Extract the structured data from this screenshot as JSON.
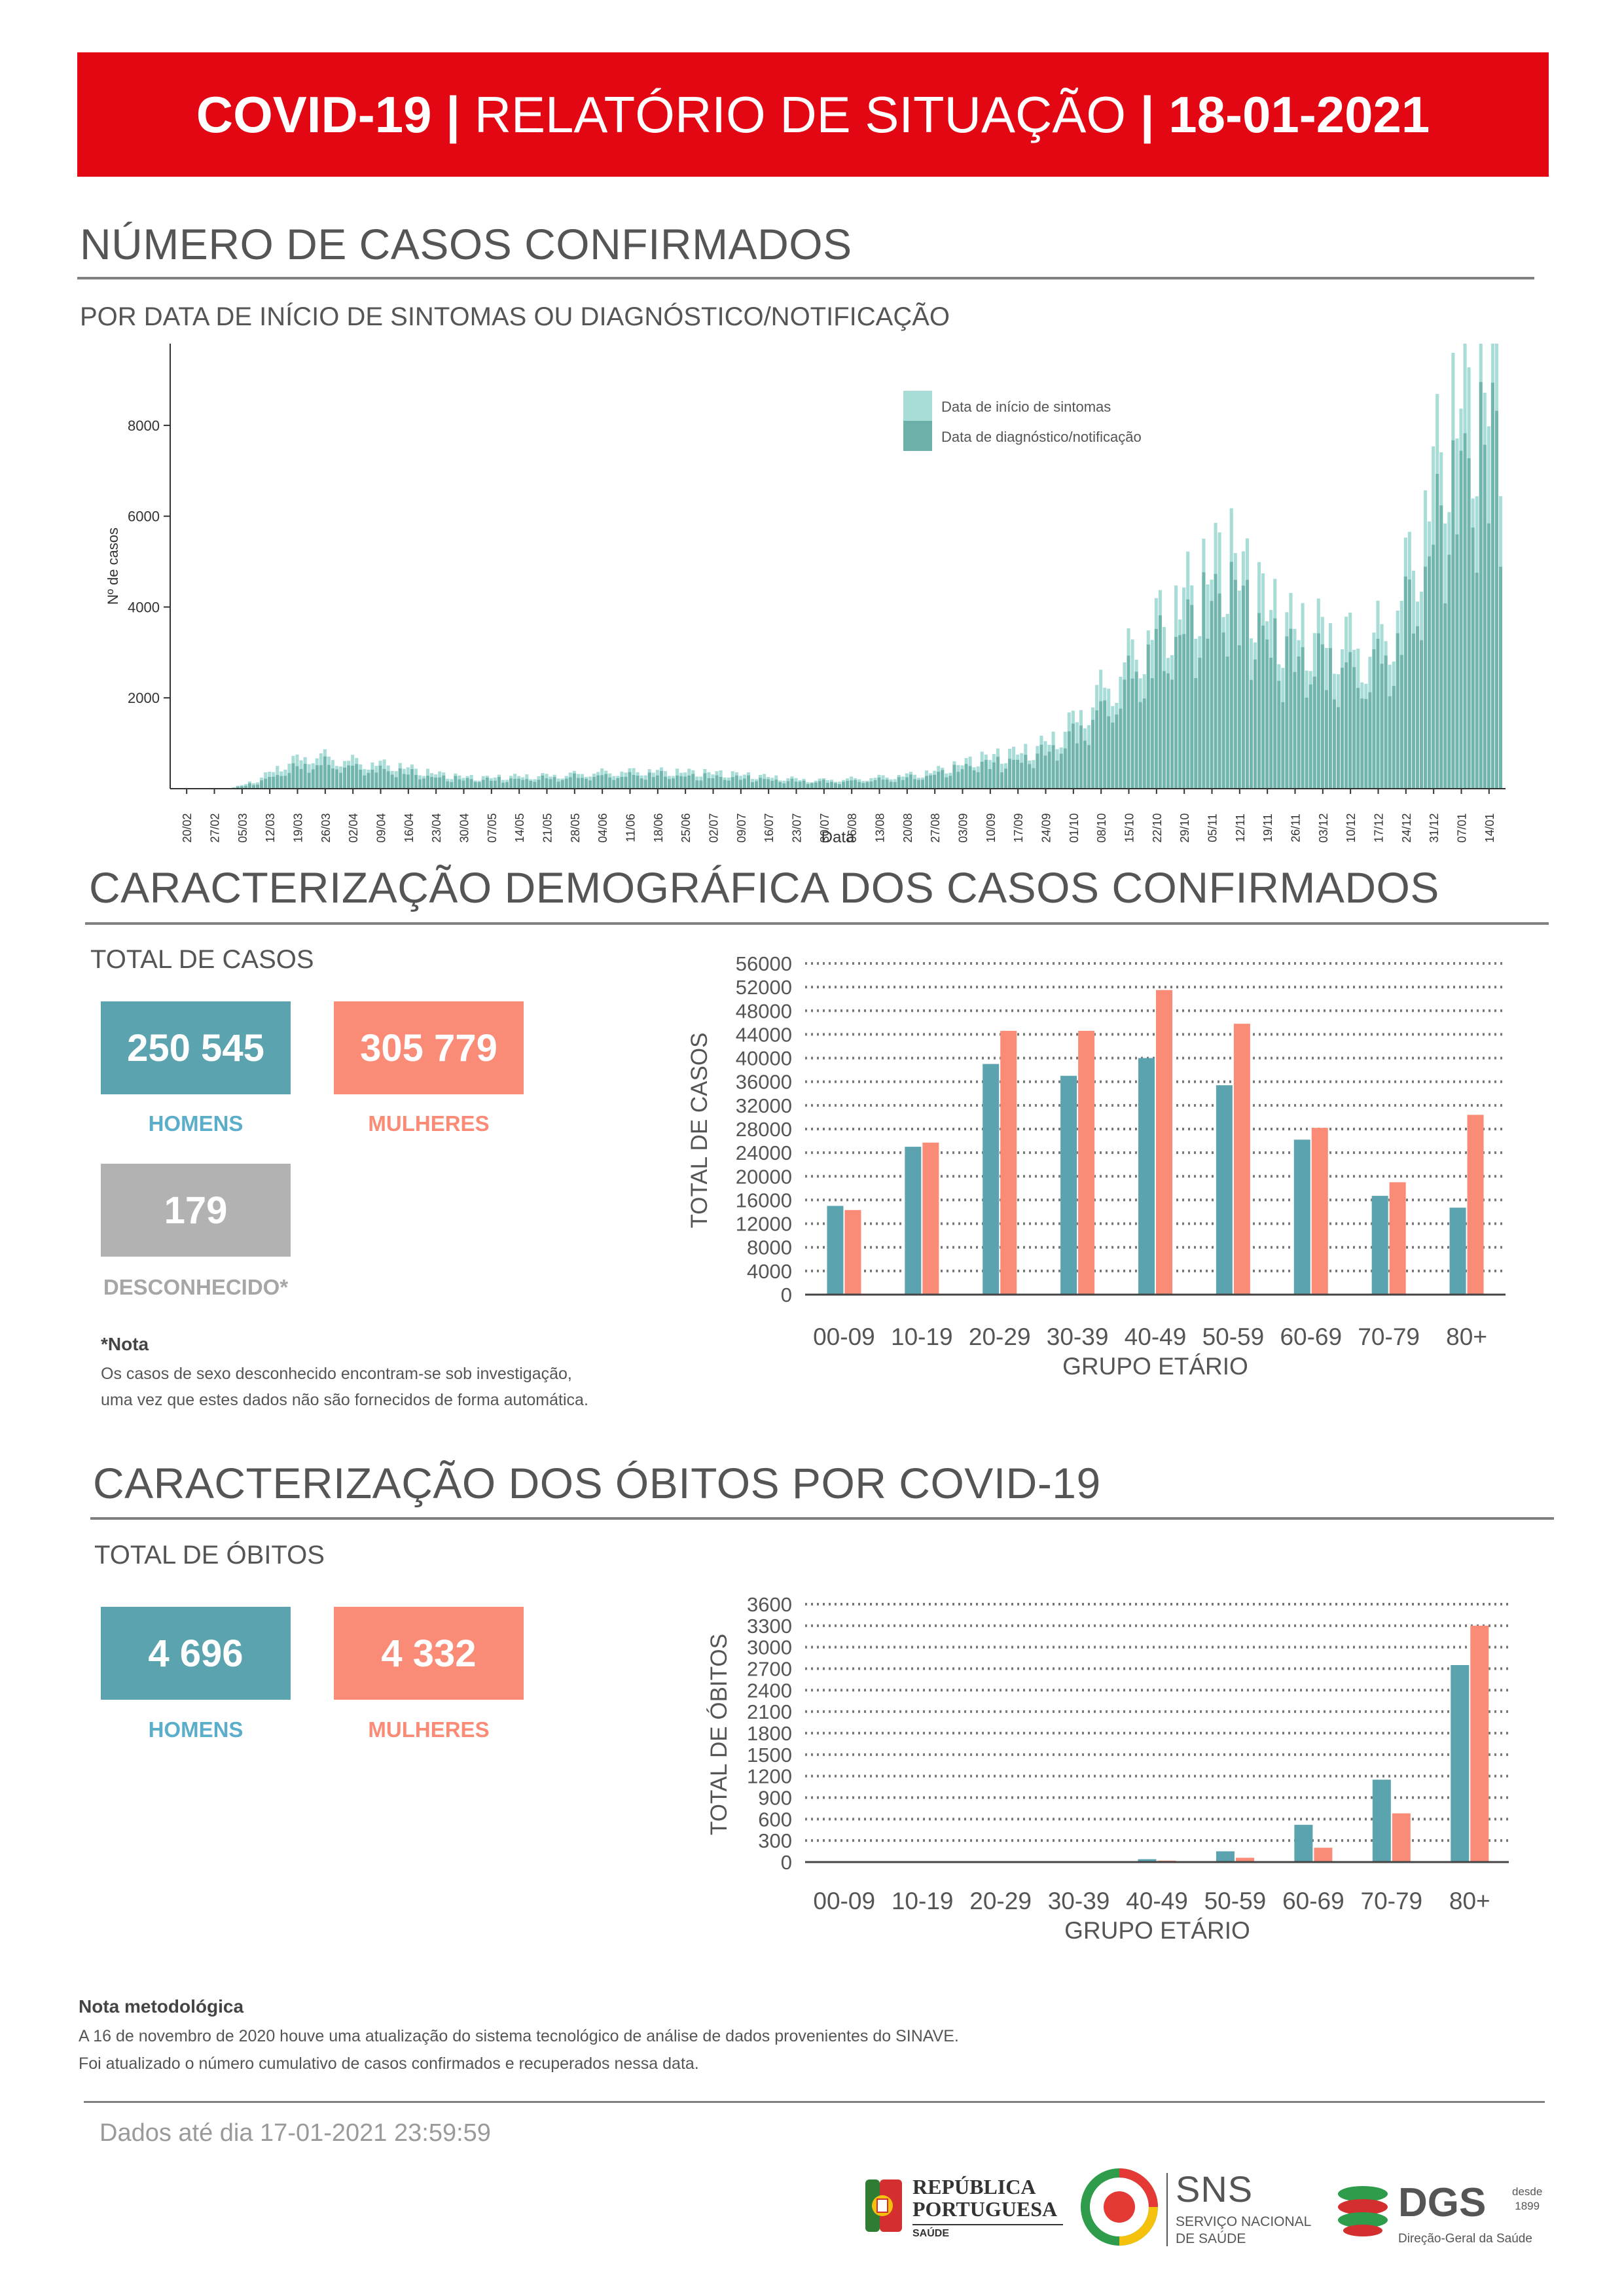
{
  "header": {
    "part1": "COVID-19",
    "sep1": "|",
    "part2": "RELATÓRIO DE SITUAÇÃO",
    "sep2": "|",
    "date": "18-01-2021"
  },
  "colors": {
    "red": "#e30613",
    "teal": "#5ba3ae",
    "salmon": "#fa8b77",
    "grey": "#b2b2b2",
    "light_teal": "#a7dcd7",
    "dark_teal": "#6cb0a9",
    "label_teal": "#5aaec9"
  },
  "section1": {
    "title": "NÚMERO DE CASOS CONFIRMADOS",
    "subtitle": "POR DATA DE INÍCIO DE SINTOMAS OU DIAGNÓSTICO/NOTIFICAÇÃO"
  },
  "section2": {
    "title": "CARACTERIZAÇÃO DEMOGRÁFICA DOS CASOS CONFIRMADOS",
    "total_label": "TOTAL DE CASOS",
    "men_value": "250 545",
    "women_value": "305 779",
    "unknown_value": "179",
    "men_label": "HOMENS",
    "women_label": "MULHERES",
    "unknown_label": "DESCONHECIDO*",
    "note_title": "*Nota",
    "note_line1": "Os casos de sexo desconhecido encontram-se sob investigação,",
    "note_line2": "uma vez que estes dados não são fornecidos de forma automática."
  },
  "section3": {
    "title": "CARACTERIZAÇÃO DOS ÓBITOS POR COVID-19",
    "total_label": "TOTAL DE ÓBITOS",
    "men_value": "4 696",
    "women_value": "4 332",
    "men_label": "HOMENS",
    "women_label": "MULHERES"
  },
  "methodology": {
    "title": "Nota metodológica",
    "line1": "A 16 de novembro de 2020 houve uma atualização do sistema tecnológico de análise de dados provenientes do SINAVE.",
    "line2": "Foi atualizado o número cumulativo de casos confirmados e recuperados nessa data."
  },
  "footer": {
    "data_until": "Dados até dia 17-01-2021 23:59:59"
  },
  "logos": {
    "republica_line1": "REPÚBLICA",
    "republica_line2": "PORTUGUESA",
    "republica_line3": "SAÚDE",
    "sns_abbr": "SNS",
    "sns_line1": "SERVIÇO NACIONAL",
    "sns_line2": "DE SAÚDE",
    "dgs_abbr": "DGS",
    "dgs_since": "desde",
    "dgs_year": "1899",
    "dgs_name": "Direção-Geral da Saúde"
  },
  "chart_data": [
    {
      "type": "bar",
      "ylabel": "Nº de casos",
      "xlabel": "Data",
      "ylim": [
        0,
        9800
      ],
      "yticks": [
        2000,
        4000,
        6000,
        8000
      ],
      "xtick_labels": [
        "20/02",
        "27/02",
        "05/03",
        "12/03",
        "19/03",
        "26/03",
        "02/04",
        "09/04",
        "16/04",
        "23/04",
        "30/04",
        "07/05",
        "14/05",
        "21/05",
        "28/05",
        "04/06",
        "11/06",
        "18/06",
        "25/06",
        "02/07",
        "09/07",
        "16/07",
        "23/07",
        "30/07",
        "06/08",
        "13/08",
        "20/08",
        "27/08",
        "03/09",
        "10/09",
        "17/09",
        "24/09",
        "01/10",
        "08/10",
        "15/10",
        "22/10",
        "29/10",
        "05/11",
        "12/11",
        "19/11",
        "26/11",
        "03/12",
        "10/12",
        "17/12",
        "24/12",
        "31/12",
        "07/01",
        "14/01"
      ],
      "legend_position": "top-right",
      "series": [
        {
          "name": "Data de início de sintomas",
          "weekly_values": [
            0,
            0,
            0,
            200,
            600,
            800,
            700,
            600,
            550,
            400,
            300,
            250,
            280,
            300,
            320,
            380,
            400,
            420,
            400,
            380,
            350,
            300,
            250,
            200,
            220,
            250,
            300,
            350,
            500,
            700,
            800,
            900,
            1300,
            2000,
            2700,
            3600,
            4200,
            4800,
            5500,
            4600,
            3800,
            3700,
            3600,
            3300,
            4000,
            6200,
            8700,
            9200
          ]
        },
        {
          "name": "Data de diagnóstico/notificação",
          "weekly_values": [
            0,
            0,
            0,
            150,
            450,
            650,
            600,
            500,
            450,
            320,
            250,
            220,
            230,
            250,
            280,
            320,
            330,
            350,
            330,
            300,
            280,
            250,
            200,
            180,
            180,
            210,
            250,
            300,
            450,
            600,
            650,
            800,
            1100,
            1700,
            2400,
            3300,
            3800,
            4400,
            5000,
            4100,
            3400,
            3300,
            3100,
            3000,
            3600,
            5400,
            7600,
            8400
          ]
        }
      ]
    },
    {
      "type": "bar",
      "xlabel": "GRUPO ETÁRIO",
      "ylabel": "TOTAL DE CASOS",
      "ylim": [
        0,
        56000
      ],
      "yticks": [
        0,
        4000,
        8000,
        12000,
        16000,
        20000,
        24000,
        28000,
        32000,
        36000,
        40000,
        44000,
        48000,
        52000,
        56000
      ],
      "categories": [
        "00-09",
        "10-19",
        "20-29",
        "30-39",
        "40-49",
        "50-59",
        "60-69",
        "70-79",
        "80+"
      ],
      "series": [
        {
          "values": [
            15000,
            25000,
            39000,
            37000,
            40000,
            35400,
            26200,
            16700,
            14700
          ]
        },
        {
          "values": [
            14300,
            25700,
            44600,
            44600,
            51500,
            45800,
            28200,
            19000,
            30400
          ]
        }
      ]
    },
    {
      "type": "bar",
      "xlabel": "GRUPO ETÁRIO",
      "ylabel": "TOTAL DE ÓBITOS",
      "ylim": [
        0,
        3600
      ],
      "yticks": [
        0,
        300,
        600,
        900,
        1200,
        1500,
        1800,
        2100,
        2400,
        2700,
        3000,
        3300,
        3600
      ],
      "categories": [
        "00-09",
        "10-19",
        "20-29",
        "30-39",
        "40-49",
        "50-59",
        "60-69",
        "70-79",
        "80+"
      ],
      "series": [
        {
          "values": [
            0,
            0,
            0,
            8,
            40,
            150,
            520,
            1150,
            2750
          ]
        },
        {
          "values": [
            0,
            0,
            0,
            4,
            20,
            60,
            200,
            680,
            3300
          ]
        }
      ]
    }
  ]
}
